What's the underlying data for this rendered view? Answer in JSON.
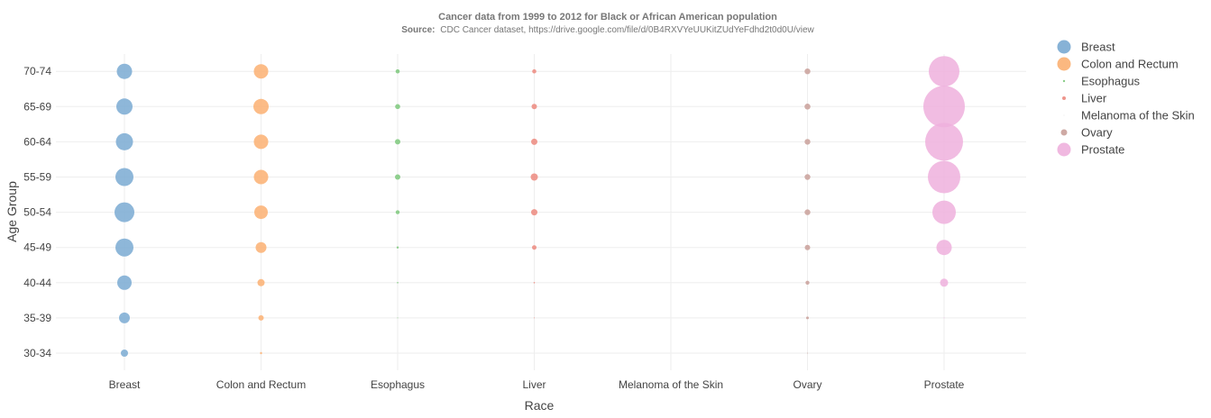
{
  "chart_data": {
    "type": "scatter",
    "title": "Cancer data from 1999 to 2012 for Black or African American population",
    "subtitle_prefix": "Source:",
    "subtitle": "CDC Cancer dataset, https://drive.google.com/file/d/0B4RXVYeUUKitZUdYeFdhd2t0d0U/view",
    "xlabel": "Race",
    "ylabel": "Age Group",
    "grid": true,
    "legend_position": "right",
    "categories": [
      "Breast",
      "Colon and Rectum",
      "Esophagus",
      "Liver",
      "Melanoma of the Skin",
      "Ovary",
      "Prostate"
    ],
    "y_categories": [
      "30-34",
      "35-39",
      "40-44",
      "45-49",
      "50-54",
      "55-59",
      "60-64",
      "65-69",
      "70-74"
    ],
    "series": [
      {
        "name": "Breast",
        "color": "#7aaad2",
        "x": "Breast",
        "sizes": [
          4,
          6,
          8,
          10,
          11,
          10,
          9.5,
          9,
          8.5
        ]
      },
      {
        "name": "Colon and Rectum",
        "color": "#fbb072",
        "x": "Colon and Rectum",
        "sizes": [
          1.2,
          3,
          4,
          6,
          7.5,
          8,
          8,
          8.5,
          8
        ]
      },
      {
        "name": "Esophagus",
        "color": "#7dc87b",
        "x": "Esophagus",
        "sizes": [
          0,
          0.5,
          0.8,
          1.2,
          2.2,
          3,
          3,
          2.8,
          2.3
        ]
      },
      {
        "name": "Liver",
        "color": "#ec8a7f",
        "x": "Liver",
        "sizes": [
          0,
          0.5,
          0.8,
          2.5,
          3.5,
          4,
          3.5,
          3,
          2.3
        ]
      },
      {
        "name": "Melanoma of the Skin",
        "color": "#e0e0e0",
        "x": "Melanoma of the Skin",
        "sizes": [
          0,
          0,
          0,
          0,
          0,
          0,
          0,
          0,
          0
        ]
      },
      {
        "name": "Ovary",
        "color": "#c9a09a",
        "x": "Ovary",
        "sizes": [
          0.5,
          1.5,
          2.2,
          3,
          3.2,
          3.2,
          3.2,
          3.3,
          3.2
        ]
      },
      {
        "name": "Prostate",
        "color": "#eeb0dd",
        "x": "Prostate",
        "sizes": [
          0,
          0.5,
          4.5,
          8.5,
          13,
          18,
          21,
          23,
          17
        ]
      }
    ],
    "legend_marker_sizes": [
      7.5,
      7.5,
      1.2,
      2,
      0.5,
      3.5,
      7.5
    ]
  }
}
